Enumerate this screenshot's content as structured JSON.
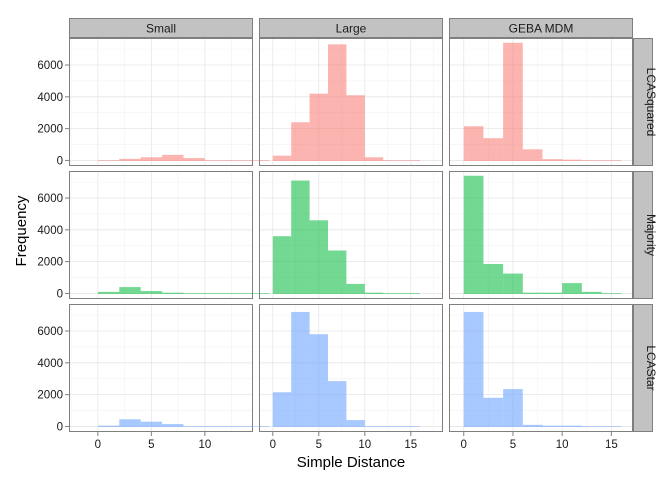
{
  "chart_data": {
    "type": "bar",
    "xlabel": "Simple Distance",
    "ylabel": "Frequency",
    "ylim": [
      -350,
      7700
    ],
    "y_ticks": [
      0,
      2000,
      4000,
      6000
    ],
    "grid": true,
    "columns": [
      {
        "label": "Small",
        "xlim": [
          -2.7,
          14.5
        ],
        "x_ticks": [
          0,
          5,
          10
        ]
      },
      {
        "label": "Large",
        "xlim": [
          -1.5,
          18.5
        ],
        "x_ticks": [
          0,
          5,
          10,
          15
        ]
      },
      {
        "label": "GEBA MDM",
        "xlim": [
          -1.5,
          17.2
        ],
        "x_ticks": [
          0,
          5,
          10,
          15
        ]
      }
    ],
    "rows": [
      {
        "label": "LCASquared",
        "color": "#f8766d"
      },
      {
        "label": "Majority",
        "color": "#00ba38"
      },
      {
        "label": "LCAStar",
        "color": "#619cff"
      }
    ],
    "bin_width": 2,
    "bin_starts": [
      0,
      2,
      4,
      6,
      8,
      10,
      12,
      14
    ],
    "panels": [
      {
        "row": 0,
        "col": 0,
        "counts": [
          0,
          100,
          200,
          350,
          150,
          0,
          0,
          0
        ]
      },
      {
        "row": 0,
        "col": 1,
        "counts": [
          300,
          2400,
          4200,
          7300,
          4100,
          200,
          0,
          0
        ]
      },
      {
        "row": 0,
        "col": 2,
        "counts": [
          2150,
          1400,
          7400,
          700,
          80,
          50,
          0,
          0
        ]
      },
      {
        "row": 1,
        "col": 0,
        "counts": [
          100,
          400,
          150,
          50,
          0,
          0,
          0,
          0
        ]
      },
      {
        "row": 1,
        "col": 1,
        "counts": [
          3600,
          7100,
          4600,
          2700,
          600,
          50,
          0,
          0
        ]
      },
      {
        "row": 1,
        "col": 2,
        "counts": [
          7400,
          1850,
          1250,
          50,
          50,
          650,
          100,
          0
        ]
      },
      {
        "row": 2,
        "col": 0,
        "counts": [
          50,
          450,
          300,
          150,
          0,
          0,
          0,
          0
        ]
      },
      {
        "row": 2,
        "col": 1,
        "counts": [
          2150,
          7200,
          5800,
          2850,
          400,
          0,
          0,
          0
        ]
      },
      {
        "row": 2,
        "col": 2,
        "counts": [
          7200,
          1800,
          2350,
          100,
          50,
          50,
          0,
          0
        ]
      }
    ]
  }
}
